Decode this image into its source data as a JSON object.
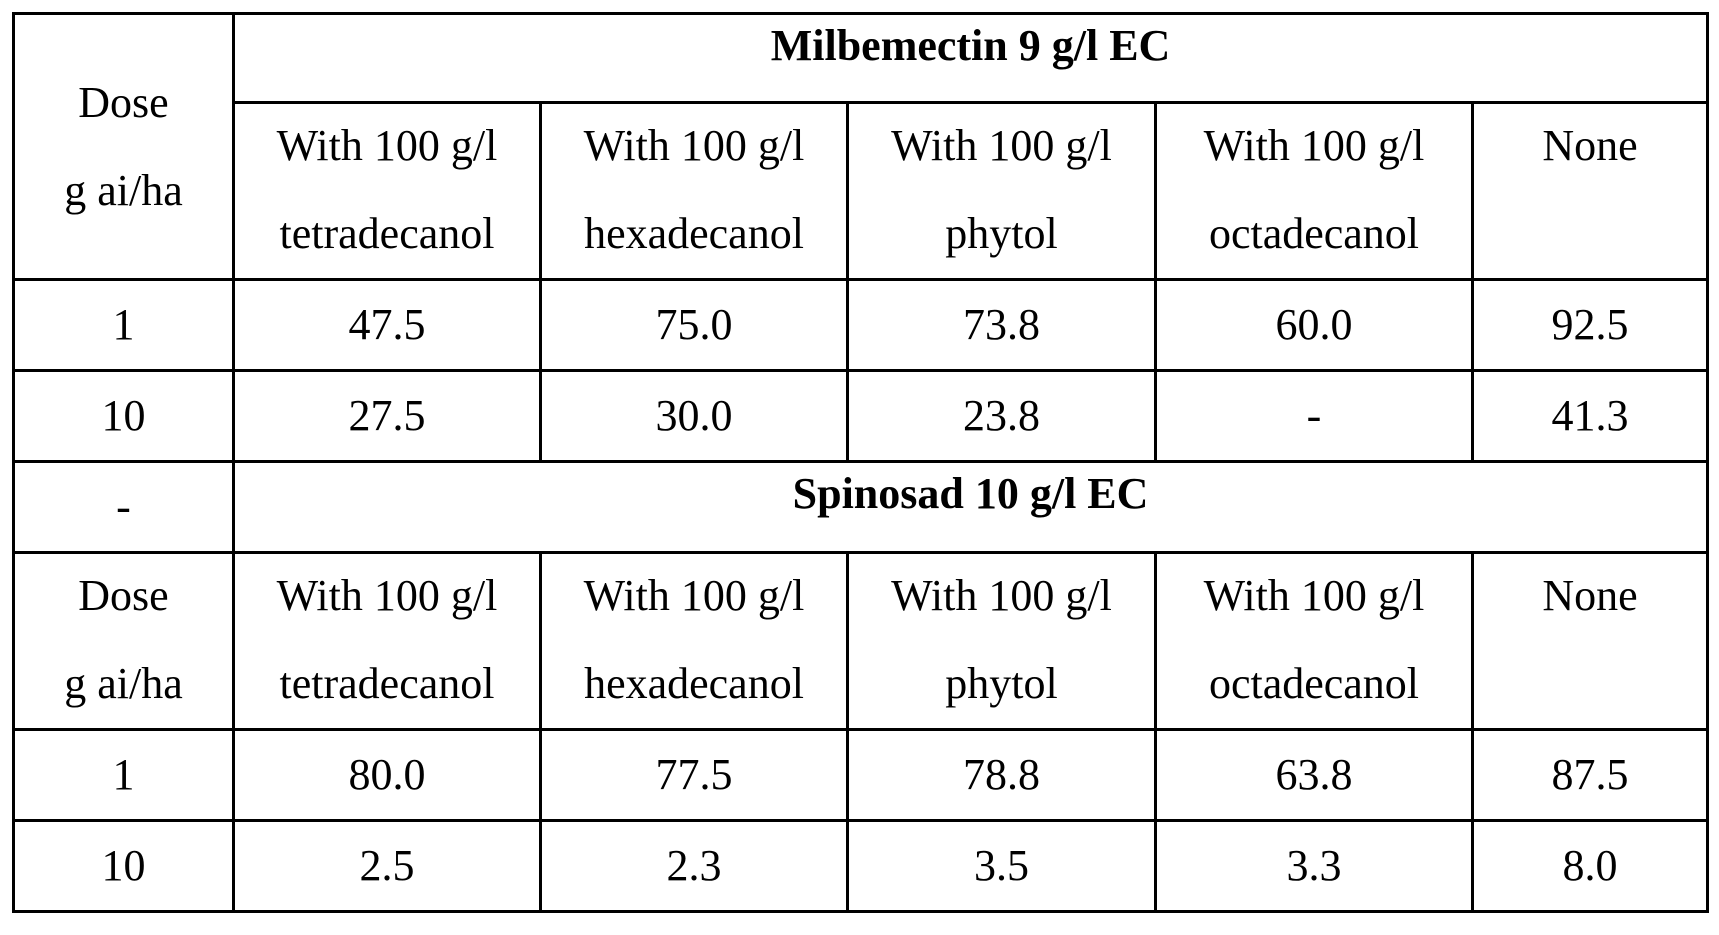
{
  "table": {
    "blocks": [
      {
        "section_label": "",
        "title": "Milbemectin 9 g/l EC",
        "dose_header": [
          "Dose",
          "g ai/ha"
        ],
        "column_headers": [
          [
            "With 100 g/l",
            "tetradecanol"
          ],
          [
            "With 100 g/l",
            "hexadecanol"
          ],
          [
            "With 100 g/l",
            "phytol"
          ],
          [
            "With 100 g/l",
            "octadecanol"
          ],
          [
            "None",
            ""
          ]
        ],
        "rows": [
          {
            "dose": "1",
            "values": [
              "47.5",
              "75.0",
              "73.8",
              "60.0",
              "92.5"
            ]
          },
          {
            "dose": "10",
            "values": [
              "27.5",
              "30.0",
              "23.8",
              "-",
              "41.3"
            ]
          }
        ]
      },
      {
        "section_label": "-",
        "title": "Spinosad 10 g/l EC",
        "dose_header": [
          "Dose",
          "g ai/ha"
        ],
        "column_headers": [
          [
            "With 100 g/l",
            "tetradecanol"
          ],
          [
            "With 100 g/l",
            "hexadecanol"
          ],
          [
            "With 100 g/l",
            "phytol"
          ],
          [
            "With 100 g/l",
            "octadecanol"
          ],
          [
            "None",
            ""
          ]
        ],
        "rows": [
          {
            "dose": "1",
            "values": [
              "80.0",
              "77.5",
              "78.8",
              "63.8",
              "87.5"
            ]
          },
          {
            "dose": "10",
            "values": [
              "2.5",
              "2.3",
              "3.5",
              "3.3",
              "8.0"
            ]
          }
        ]
      }
    ]
  }
}
